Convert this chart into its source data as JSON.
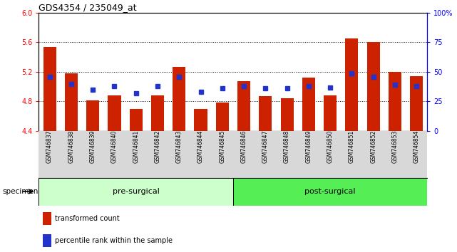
{
  "title": "GDS4354 / 235049_at",
  "samples": [
    "GSM746837",
    "GSM746838",
    "GSM746839",
    "GSM746840",
    "GSM746841",
    "GSM746842",
    "GSM746843",
    "GSM746844",
    "GSM746845",
    "GSM746846",
    "GSM746847",
    "GSM746848",
    "GSM746849",
    "GSM746850",
    "GSM746851",
    "GSM746852",
    "GSM746853",
    "GSM746854"
  ],
  "transformed_count": [
    5.54,
    5.18,
    4.81,
    4.88,
    4.7,
    4.88,
    5.27,
    4.7,
    4.79,
    5.07,
    4.87,
    4.84,
    5.12,
    4.88,
    5.65,
    5.6,
    5.2,
    5.14
  ],
  "percentile_rank": [
    46,
    40,
    35,
    38,
    32,
    38,
    46,
    33,
    36,
    38,
    36,
    36,
    38,
    37,
    49,
    46,
    39,
    38
  ],
  "bar_color": "#cc2200",
  "square_color": "#2233cc",
  "ylim_left": [
    4.4,
    6.0
  ],
  "ylim_right": [
    0,
    100
  ],
  "yticks_left": [
    4.4,
    4.8,
    5.2,
    5.6,
    6.0
  ],
  "yticks_right": [
    0,
    25,
    50,
    75,
    100
  ],
  "ytick_labels_right": [
    "0",
    "25",
    "50",
    "75",
    "100%"
  ],
  "pre_surgical_count": 9,
  "post_surgical_count": 9,
  "pre_color": "#ccffcc",
  "post_color": "#55ee55",
  "grey_bg": "#d8d8d8",
  "bar_width": 0.6,
  "base_value": 4.4,
  "grid_values": [
    4.8,
    5.2,
    5.6
  ],
  "legend_red_label": "transformed count",
  "legend_blue_label": "percentile rank within the sample",
  "specimen_label": "specimen"
}
